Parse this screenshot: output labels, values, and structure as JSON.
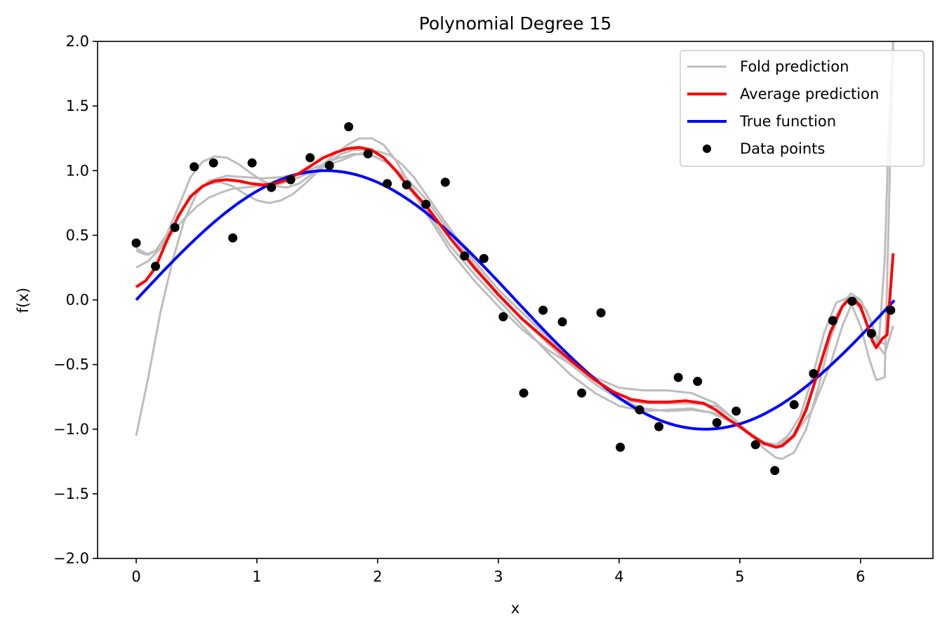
{
  "chart_data": {
    "type": "line",
    "title": "Polynomial Degree 15",
    "xlabel": "x",
    "ylabel": "f(x)",
    "xlim": [
      -0.32,
      6.6
    ],
    "ylim": [
      -2.0,
      2.0
    ],
    "xticks": [
      0,
      1,
      2,
      3,
      4,
      5,
      6
    ],
    "xtick_labels": [
      "0",
      "1",
      "2",
      "3",
      "4",
      "5",
      "6"
    ],
    "yticks": [
      -2.0,
      -1.5,
      -1.0,
      -0.5,
      0.0,
      0.5,
      1.0,
      1.5,
      2.0
    ],
    "ytick_labels": [
      "−2.0",
      "−1.5",
      "−1.0",
      "−0.5",
      "0.0",
      "0.5",
      "1.0",
      "1.5",
      "2.0"
    ],
    "grid": false,
    "legend_position": "top-right",
    "legend": [
      {
        "label": "Fold prediction",
        "kind": "line",
        "color": "#bdbdbd"
      },
      {
        "label": "Average prediction",
        "kind": "line",
        "color": "#ff0000"
      },
      {
        "label": "True function",
        "kind": "line",
        "color": "#0000ff"
      },
      {
        "label": "Data points",
        "kind": "marker",
        "color": "#000000"
      }
    ],
    "colors": {
      "fold": "#bdbdbd",
      "average": "#ff0000",
      "true": "#0000ff",
      "points": "#000000"
    },
    "data_points": {
      "x": [
        0.0,
        0.16,
        0.32,
        0.48,
        0.64,
        0.8,
        0.96,
        1.12,
        1.28,
        1.44,
        1.6,
        1.76,
        1.92,
        2.08,
        2.24,
        2.4,
        2.56,
        2.72,
        2.88,
        3.04,
        3.21,
        3.37,
        3.53,
        3.69,
        3.85,
        4.01,
        4.17,
        4.33,
        4.49,
        4.65,
        4.81,
        4.97,
        5.13,
        5.29,
        5.45,
        5.61,
        5.77,
        5.93,
        6.09,
        6.25
      ],
      "y": [
        0.44,
        0.26,
        0.56,
        1.03,
        1.06,
        0.48,
        1.06,
        0.87,
        0.93,
        1.1,
        1.04,
        1.34,
        1.13,
        0.9,
        0.89,
        0.74,
        0.91,
        0.34,
        0.32,
        -0.13,
        -0.72,
        -0.08,
        -0.17,
        -0.72,
        -0.1,
        -1.14,
        -0.85,
        -0.98,
        -0.6,
        -0.63,
        -0.95,
        -0.86,
        -1.12,
        -1.32,
        -0.81,
        -0.57,
        -0.16,
        -0.01,
        -0.26,
        -0.08
      ]
    },
    "true_function": {
      "expression": "sin(x)",
      "x_range": [
        0,
        6.28
      ]
    },
    "average_prediction": {
      "x": [
        0,
        0.08,
        0.16,
        0.25,
        0.35,
        0.45,
        0.55,
        0.65,
        0.75,
        0.85,
        0.95,
        1.05,
        1.15,
        1.25,
        1.35,
        1.45,
        1.55,
        1.65,
        1.75,
        1.85,
        1.95,
        2.05,
        2.15,
        2.25,
        2.4,
        2.6,
        2.8,
        3.0,
        3.2,
        3.4,
        3.6,
        3.8,
        3.95,
        4.1,
        4.25,
        4.4,
        4.55,
        4.7,
        4.8,
        4.9,
        5.0,
        5.1,
        5.2,
        5.3,
        5.35,
        5.45,
        5.55,
        5.65,
        5.75,
        5.85,
        5.9,
        5.95,
        6.0,
        6.05,
        6.1,
        6.13,
        6.18,
        6.22,
        6.27
      ],
      "y": [
        0.1,
        0.15,
        0.25,
        0.45,
        0.65,
        0.8,
        0.88,
        0.92,
        0.93,
        0.92,
        0.9,
        0.89,
        0.9,
        0.93,
        0.98,
        1.04,
        1.1,
        1.14,
        1.17,
        1.18,
        1.16,
        1.1,
        1.0,
        0.88,
        0.73,
        0.48,
        0.25,
        0.04,
        -0.15,
        -0.31,
        -0.47,
        -0.62,
        -0.71,
        -0.77,
        -0.79,
        -0.79,
        -0.78,
        -0.8,
        -0.85,
        -0.92,
        -0.98,
        -1.05,
        -1.11,
        -1.14,
        -1.13,
        -1.05,
        -0.85,
        -0.55,
        -0.25,
        -0.05,
        0.0,
        0.0,
        -0.05,
        -0.18,
        -0.32,
        -0.37,
        -0.3,
        -0.27,
        0.36
      ]
    },
    "fold_predictions": [
      {
        "x": [
          0,
          0.1,
          0.2,
          0.3,
          0.4,
          0.5,
          0.6,
          0.75,
          0.9,
          1.05,
          1.2,
          1.35,
          1.5,
          1.65,
          1.8,
          1.95,
          2.1,
          2.25,
          2.4,
          2.6,
          2.8,
          3.0,
          3.2,
          3.4,
          3.6,
          3.8,
          4.0,
          4.2,
          4.4,
          4.6,
          4.75,
          4.9,
          5.05,
          5.2,
          5.3,
          5.45,
          5.6,
          5.75,
          5.85,
          5.95,
          6.05,
          6.15,
          6.2,
          6.23,
          6.27
        ],
        "y": [
          -1.05,
          -0.6,
          -0.1,
          0.3,
          0.62,
          0.82,
          0.92,
          0.96,
          0.95,
          0.94,
          0.95,
          0.98,
          1.03,
          1.09,
          1.13,
          1.12,
          1.05,
          0.93,
          0.78,
          0.52,
          0.27,
          0.05,
          -0.15,
          -0.33,
          -0.5,
          -0.65,
          -0.77,
          -0.84,
          -0.86,
          -0.85,
          -0.87,
          -0.93,
          -1.02,
          -1.1,
          -1.12,
          -1.05,
          -0.85,
          -0.5,
          -0.2,
          0.02,
          -0.08,
          -0.35,
          0.3,
          1.2,
          2.0
        ]
      },
      {
        "x": [
          0,
          0.08,
          0.16,
          0.25,
          0.35,
          0.45,
          0.55,
          0.65,
          0.75,
          0.85,
          0.95,
          1.05,
          1.15,
          1.25,
          1.35,
          1.45,
          1.55,
          1.65,
          1.75,
          1.85,
          1.95,
          2.05,
          2.15,
          2.25,
          2.4,
          2.6,
          2.8,
          3.0,
          3.2,
          3.4,
          3.6,
          3.8,
          4.0,
          4.2,
          4.4,
          4.6,
          4.8,
          5.0,
          5.2,
          5.3,
          5.4,
          5.5,
          5.6,
          5.7,
          5.8,
          5.9,
          6.0,
          6.1,
          6.2,
          6.27
        ],
        "y": [
          0.38,
          0.35,
          0.38,
          0.5,
          0.72,
          0.95,
          1.07,
          1.11,
          1.1,
          1.05,
          0.98,
          0.92,
          0.88,
          0.87,
          0.9,
          0.97,
          1.05,
          1.13,
          1.2,
          1.25,
          1.25,
          1.2,
          1.08,
          0.92,
          0.7,
          0.42,
          0.2,
          0.0,
          -0.2,
          -0.4,
          -0.58,
          -0.72,
          -0.82,
          -0.86,
          -0.85,
          -0.84,
          -0.88,
          -0.98,
          -1.1,
          -1.12,
          -1.1,
          -0.95,
          -0.7,
          -0.4,
          -0.12,
          0.03,
          -0.07,
          -0.3,
          -0.42,
          -0.2
        ]
      },
      {
        "x": [
          0,
          0.1,
          0.2,
          0.3,
          0.4,
          0.5,
          0.6,
          0.7,
          0.8,
          0.9,
          1.0,
          1.1,
          1.2,
          1.3,
          1.4,
          1.5,
          1.6,
          1.7,
          1.8,
          1.9,
          2.0,
          2.1,
          2.2,
          2.3,
          2.45,
          2.6,
          2.8,
          3.0,
          3.2,
          3.4,
          3.6,
          3.8,
          4.0,
          4.2,
          4.4,
          4.6,
          4.8,
          4.95,
          5.1,
          5.2,
          5.3,
          5.4,
          5.5,
          5.6,
          5.7,
          5.8,
          5.9,
          6.0,
          6.07,
          6.13,
          6.2,
          6.27
        ],
        "y": [
          0.4,
          0.35,
          0.4,
          0.55,
          0.72,
          0.85,
          0.9,
          0.91,
          0.88,
          0.82,
          0.77,
          0.75,
          0.77,
          0.82,
          0.9,
          0.99,
          1.07,
          1.13,
          1.16,
          1.16,
          1.13,
          1.06,
          0.95,
          0.82,
          0.6,
          0.38,
          0.15,
          -0.05,
          -0.23,
          -0.38,
          -0.5,
          -0.6,
          -0.68,
          -0.7,
          -0.7,
          -0.72,
          -0.8,
          -0.92,
          -1.05,
          -1.12,
          -1.12,
          -1.05,
          -0.9,
          -0.6,
          -0.25,
          -0.02,
          0.02,
          -0.2,
          -0.45,
          -0.62,
          -0.6,
          2.0
        ]
      },
      {
        "x": [
          0,
          0.1,
          0.2,
          0.3,
          0.4,
          0.5,
          0.6,
          0.7,
          0.8,
          0.9,
          1.0,
          1.1,
          1.2,
          1.3,
          1.4,
          1.5,
          1.6,
          1.7,
          1.8,
          1.9,
          2.0,
          2.1,
          2.2,
          2.3,
          2.45,
          2.6,
          2.8,
          3.0,
          3.2,
          3.4,
          3.6,
          3.8,
          4.0,
          4.2,
          4.4,
          4.6,
          4.8,
          4.95,
          5.1,
          5.2,
          5.3,
          5.35,
          5.45,
          5.55,
          5.65,
          5.75,
          5.85,
          5.92,
          6.0,
          6.08,
          6.15,
          6.22,
          6.27
        ],
        "y": [
          0.25,
          0.3,
          0.4,
          0.52,
          0.63,
          0.72,
          0.79,
          0.83,
          0.86,
          0.87,
          0.88,
          0.88,
          0.9,
          0.93,
          0.97,
          1.0,
          1.05,
          1.08,
          1.12,
          1.14,
          1.15,
          1.12,
          1.05,
          0.95,
          0.75,
          0.55,
          0.3,
          0.08,
          -0.1,
          -0.28,
          -0.48,
          -0.65,
          -0.77,
          -0.8,
          -0.8,
          -0.8,
          -0.82,
          -0.92,
          -1.05,
          -1.15,
          -1.22,
          -1.23,
          -1.18,
          -1.0,
          -0.68,
          -0.3,
          -0.05,
          0.05,
          0.0,
          -0.15,
          -0.32,
          -0.35,
          -0.2
        ]
      }
    ]
  }
}
